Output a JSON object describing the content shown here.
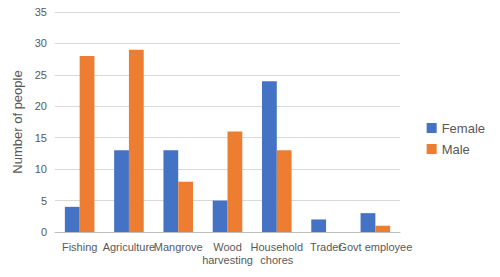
{
  "chart_data": {
    "type": "bar",
    "y_label": "Number of people",
    "categories": [
      "Fishing",
      "Agriculture",
      "Mangrove",
      "Wood harvesting",
      "Household chores",
      "Trader",
      "Govt employee"
    ],
    "series": [
      {
        "name": "Female",
        "color": "#4472c4",
        "values": [
          4,
          13,
          13,
          5,
          24,
          2,
          3
        ]
      },
      {
        "name": "Male",
        "color": "#ed7d31",
        "values": [
          28,
          29,
          8,
          16,
          13,
          0,
          1
        ]
      }
    ],
    "ylim": [
      0,
      35
    ],
    "yticks": [
      0,
      5,
      10,
      15,
      20,
      25,
      30,
      35
    ],
    "grid": true,
    "legend": "right"
  }
}
